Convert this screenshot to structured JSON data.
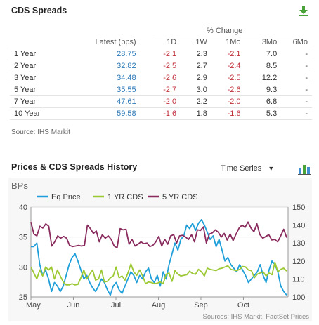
{
  "cds_panel": {
    "title": "CDS Spreads",
    "pct_change_header": "% Change",
    "columns": [
      "Latest (bps)",
      "1D",
      "1W",
      "1Mo",
      "3Mo",
      "6Mo"
    ],
    "rows": [
      {
        "term": "1 Year",
        "latest": "28.75",
        "d1": "-2.1",
        "w1": "2.3",
        "mo1": "-2.1",
        "mo3": "7.0",
        "mo6": "-"
      },
      {
        "term": "2 Year",
        "latest": "32.82",
        "d1": "-2.5",
        "w1": "2.7",
        "mo1": "-2.4",
        "mo3": "8.5",
        "mo6": "-"
      },
      {
        "term": "3 Year",
        "latest": "34.48",
        "d1": "-2.6",
        "w1": "2.9",
        "mo1": "-2.5",
        "mo3": "12.2",
        "mo6": "-"
      },
      {
        "term": "5 Year",
        "latest": "35.55",
        "d1": "-2.7",
        "w1": "3.0",
        "mo1": "-2.6",
        "mo3": "9.3",
        "mo6": "-"
      },
      {
        "term": "7 Year",
        "latest": "47.61",
        "d1": "-2.0",
        "w1": "2.2",
        "mo1": "-2.0",
        "mo3": "6.8",
        "mo6": "-"
      },
      {
        "term": "10 Year",
        "latest": "59.58",
        "d1": "-1.6",
        "w1": "1.8",
        "mo1": "-1.6",
        "mo3": "5.3",
        "mo6": "-"
      }
    ],
    "source": "Source: IHS Markit",
    "download_icon": "download-icon"
  },
  "history_panel": {
    "title": "Prices & CDS Spreads History",
    "select_value": "Time Series",
    "chart_icon": "chart-type-icon"
  },
  "colors": {
    "eq_price": "#1f9fd9",
    "cds_1yr": "#9cc833",
    "cds_5yr": "#8a2b5e",
    "latest_blue": "#2b79b8",
    "negative_red": "#c0303a"
  },
  "chart_data": {
    "type": "line",
    "ylabel_left": "BPs",
    "source": "Sources: IHS Markit, FactSet Prices",
    "x_ticks": [
      "May",
      "Jun",
      "Jul",
      "Aug",
      "Sep",
      "Oct"
    ],
    "left_axis": {
      "ticks": [
        "40",
        "35",
        "30",
        "25"
      ],
      "range": [
        25,
        40
      ]
    },
    "right_axis": {
      "ticks": [
        "150",
        "140",
        "130",
        "120",
        "110",
        "100"
      ],
      "range": [
        100,
        150
      ]
    },
    "grid": true,
    "legend_position": "top-left",
    "series": [
      {
        "name": "Eq Price",
        "axis": "right",
        "values": [
          128,
          128,
          130,
          118,
          112,
          115,
          110,
          103,
          108,
          106,
          103,
          106,
          112,
          118,
          122,
          124,
          120,
          115,
          110,
          112,
          108,
          105,
          103,
          106,
          110,
          108,
          104,
          101,
          106,
          108,
          104,
          102,
          106,
          110,
          114,
          112,
          108,
          112,
          110,
          114,
          116,
          110,
          108,
          112,
          106,
          114,
          110,
          118,
          124,
          130,
          126,
          132,
          134,
          140,
          138,
          141,
          137,
          141,
          143,
          140,
          136,
          132,
          134,
          128,
          132,
          126,
          120,
          122,
          118,
          116,
          114,
          118,
          115,
          112,
          108,
          110,
          112,
          114,
          118,
          112,
          108,
          115,
          120,
          118,
          114,
          106,
          103,
          101
        ]
      },
      {
        "name": "1 YR CDS",
        "axis": "left",
        "values": [
          30,
          29,
          28,
          29.5,
          28.5,
          30,
          29.5,
          30,
          28,
          29.5,
          28.5,
          27.5,
          27,
          27,
          27.2,
          27,
          27.1,
          28.2,
          29.5,
          28,
          28.8,
          29.5,
          27.8,
          28,
          29.5,
          27.5,
          27.6,
          28.2,
          28.5,
          30,
          28.2,
          28.5,
          27.8,
          29,
          30.5,
          29.2,
          28.6,
          29.5,
          28.5,
          27.2,
          27.5,
          27.4,
          27.2,
          27.3,
          27.5,
          27.2,
          28.8,
          29,
          27.6,
          29.4,
          28.8,
          28.5,
          28.6,
          28.7,
          29.3,
          28.9,
          28.8,
          29.6,
          29.2,
          28.5,
          29.8,
          29.6,
          29.5,
          29.4,
          29.7,
          29.8,
          30,
          30.2,
          29.6,
          29.5,
          29.4,
          29.6,
          30.1,
          30,
          29.5,
          29.4,
          28.2,
          28.8,
          29,
          29.2,
          28.5,
          29,
          28.7,
          30.8,
          29.2,
          29.6,
          29.8,
          29.3
        ]
      },
      {
        "name": "5 YR CDS",
        "axis": "left",
        "values": [
          37.5,
          35.5,
          35.2,
          36.8,
          36.5,
          37.2,
          36.8,
          33.5,
          34.2,
          35.2,
          34.8,
          35.1,
          34.8,
          33.6,
          33.4,
          33.5,
          33.6,
          33.5,
          33.6,
          37,
          36.4,
          35.6,
          36,
          34.2,
          35.4,
          34.8,
          35.2,
          34.6,
          33.5,
          33.2,
          36.4,
          36.2,
          36.3,
          33.8,
          34.6,
          33.5,
          33.8,
          34.2,
          33.9,
          34,
          33.4,
          33.6,
          34.2,
          35.1,
          33.5,
          34.6,
          33.8,
          35.2,
          35.4,
          34,
          35.2,
          35.3,
          35,
          34.6,
          35.4,
          34.2,
          36.2,
          36.1,
          36.7,
          34,
          35.5,
          35.7,
          36.2,
          35.8,
          35,
          35.6,
          34.5,
          35.5,
          34.4,
          35.5,
          36.5,
          37,
          36.6,
          37.5,
          36.5,
          35.9,
          37.2,
          35.4,
          34.8,
          35.1,
          35.4,
          34.5,
          34.6,
          34.2,
          35.2,
          36.3,
          34.9
        ]
      }
    ]
  }
}
